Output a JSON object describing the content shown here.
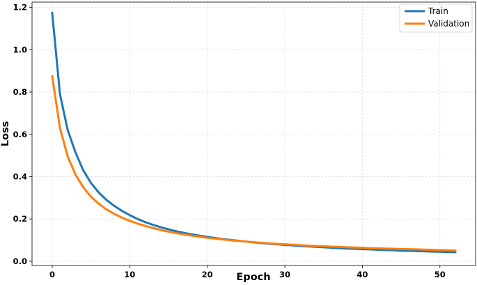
{
  "chart_data": {
    "type": "line",
    "xlabel": "Epoch",
    "ylabel": "Loss",
    "xlim": [
      -2.6,
      54.6
    ],
    "ylim": [
      -0.02,
      1.225
    ],
    "xticks": [
      0,
      10,
      20,
      30,
      40,
      50
    ],
    "yticks": [
      0.0,
      0.2,
      0.4,
      0.6,
      0.8,
      1.0,
      1.2
    ],
    "ytick_labels": [
      "0.0",
      "0.2",
      "0.4",
      "0.6",
      "0.8",
      "1.0",
      "1.2"
    ],
    "grid": true,
    "legend_position": "top-right",
    "x": [
      0,
      1,
      2,
      3,
      4,
      5,
      6,
      7,
      8,
      9,
      10,
      11,
      12,
      13,
      14,
      15,
      16,
      17,
      18,
      19,
      20,
      21,
      22,
      23,
      24,
      25,
      26,
      27,
      28,
      29,
      30,
      31,
      32,
      33,
      34,
      35,
      36,
      37,
      38,
      39,
      40,
      41,
      42,
      43,
      44,
      45,
      46,
      47,
      48,
      49,
      50,
      51,
      52
    ],
    "series": [
      {
        "name": "Train",
        "color": "#1f77b4",
        "values": [
          1.175,
          0.79,
          0.62,
          0.515,
          0.43,
          0.37,
          0.325,
          0.29,
          0.262,
          0.238,
          0.218,
          0.2,
          0.185,
          0.172,
          0.161,
          0.151,
          0.142,
          0.134,
          0.127,
          0.121,
          0.115,
          0.11,
          0.105,
          0.101,
          0.097,
          0.093,
          0.089,
          0.086,
          0.083,
          0.08,
          0.077,
          0.075,
          0.072,
          0.07,
          0.068,
          0.066,
          0.064,
          0.062,
          0.06,
          0.059,
          0.057,
          0.056,
          0.054,
          0.053,
          0.052,
          0.05,
          0.049,
          0.048,
          0.047,
          0.046,
          0.045,
          0.044,
          0.043
        ]
      },
      {
        "name": "Validation",
        "color": "#ff7f0e",
        "values": [
          0.875,
          0.63,
          0.495,
          0.41,
          0.35,
          0.305,
          0.272,
          0.245,
          0.224,
          0.206,
          0.191,
          0.178,
          0.167,
          0.157,
          0.148,
          0.14,
          0.133,
          0.127,
          0.121,
          0.116,
          0.111,
          0.107,
          0.103,
          0.099,
          0.096,
          0.093,
          0.09,
          0.087,
          0.085,
          0.082,
          0.08,
          0.078,
          0.076,
          0.074,
          0.072,
          0.071,
          0.069,
          0.068,
          0.066,
          0.065,
          0.064,
          0.062,
          0.061,
          0.06,
          0.059,
          0.058,
          0.057,
          0.056,
          0.055,
          0.054,
          0.053,
          0.052,
          0.051
        ]
      }
    ]
  }
}
